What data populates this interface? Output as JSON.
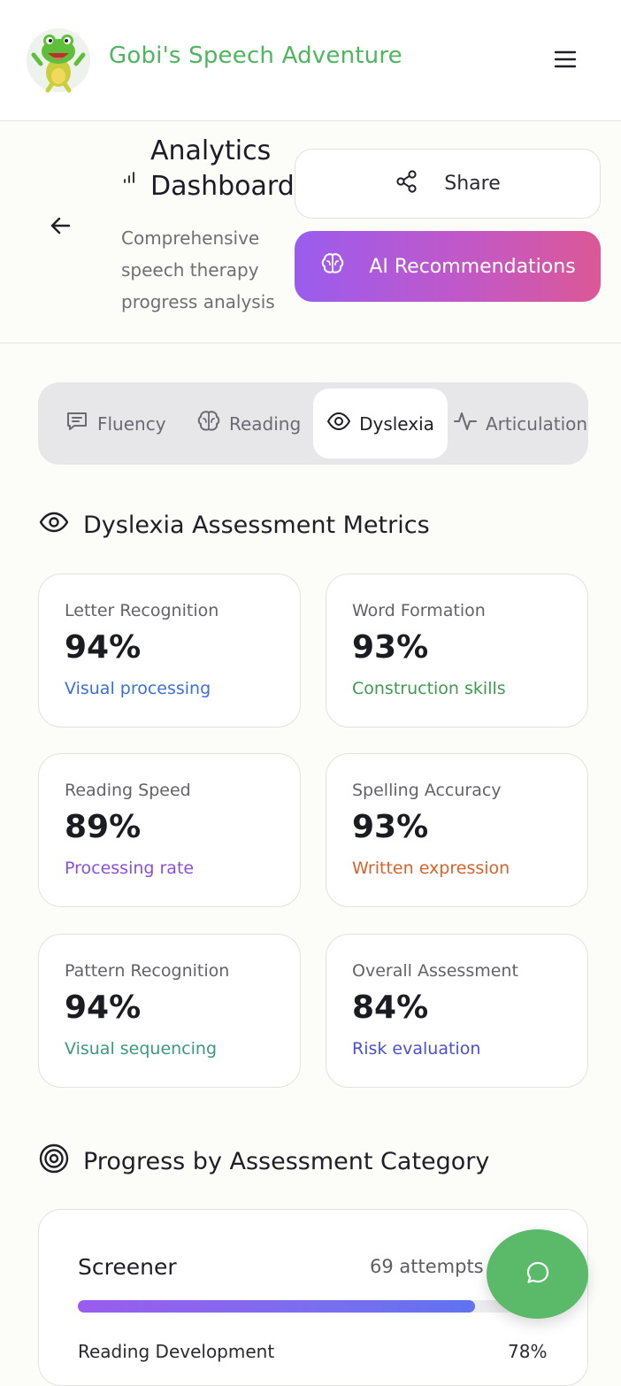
{
  "header": {
    "app_title": "Gobi's Speech Adventure",
    "logo_icon": "frog-mascot-icon",
    "menu_icon": "hamburger-menu-icon"
  },
  "subheader": {
    "title": "Analytics Dashboard",
    "subtitle": "Comprehensive speech therapy progress analysis",
    "share_label": "Share",
    "ai_label": "AI Recommendations",
    "accent_gradient": [
      "#9a5cee",
      "#dc5895"
    ]
  },
  "tabs": [
    {
      "label": "Fluency",
      "icon": "message-square-icon",
      "active": false
    },
    {
      "label": "Reading",
      "icon": "brain-icon",
      "active": false
    },
    {
      "label": "Dyslexia",
      "icon": "eye-icon",
      "active": true
    },
    {
      "label": "Articulation",
      "icon": "activity-icon",
      "active": false
    }
  ],
  "metrics_section": {
    "title": "Dyslexia Assessment Metrics",
    "cards": [
      {
        "label": "Letter Recognition",
        "value": "94%",
        "note": "Visual processing",
        "color": "#3b6fd8"
      },
      {
        "label": "Word Formation",
        "value": "93%",
        "note": "Construction skills",
        "color": "#3f9a4e"
      },
      {
        "label": "Reading Speed",
        "value": "89%",
        "note": "Processing rate",
        "color": "#8a4fd8"
      },
      {
        "label": "Spelling Accuracy",
        "value": "93%",
        "note": "Written expression",
        "color": "#d8622b"
      },
      {
        "label": "Pattern Recognition",
        "value": "94%",
        "note": "Visual sequencing",
        "color": "#3a9a7a"
      },
      {
        "label": "Overall Assessment",
        "value": "84%",
        "note": "Risk evaluation",
        "color": "#4d4fcf"
      }
    ]
  },
  "progress_section": {
    "title": "Progress by Assessment Category",
    "items": [
      {
        "name": "Screener",
        "attempts": "69 attempts",
        "progress": 0.84
      },
      {
        "name": "Reading Development",
        "value": "78%"
      }
    ]
  },
  "chat_fab": {
    "icon": "chat-bubble-icon",
    "color": "#5bb96a"
  }
}
